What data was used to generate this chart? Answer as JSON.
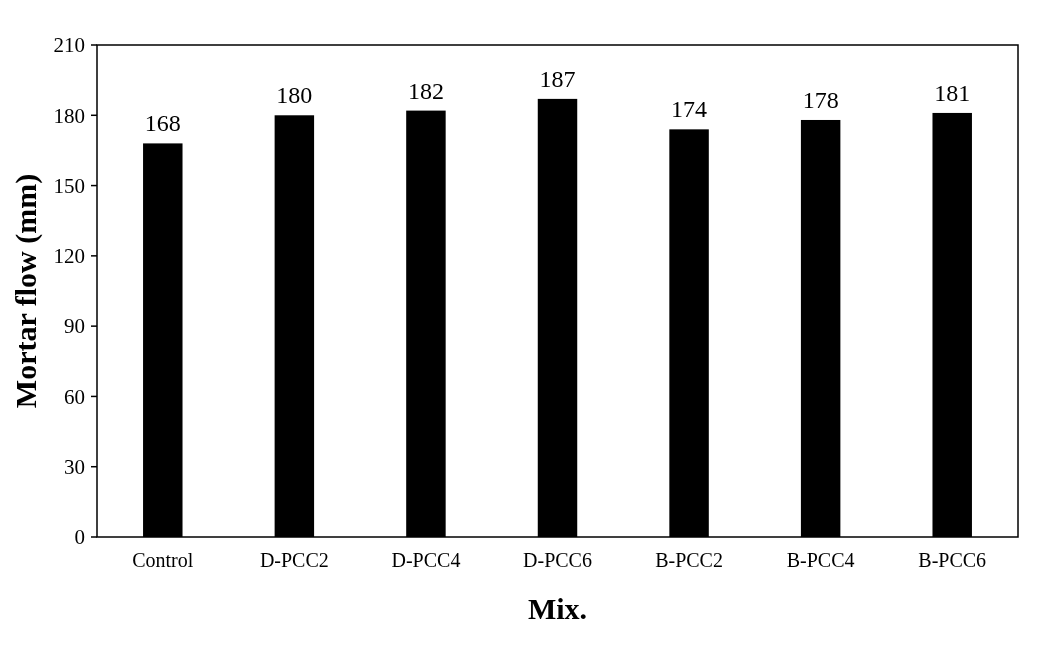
{
  "chart_data": {
    "type": "bar",
    "xlabel": "Mix.",
    "ylabel": "Mortar flow (mm)",
    "categories": [
      "Control",
      "D-PCC2",
      "D-PCC4",
      "D-PCC6",
      "B-PCC2",
      "B-PCC4",
      "B-PCC6"
    ],
    "values": [
      168,
      180,
      182,
      187,
      174,
      178,
      181
    ],
    "color": "#000000",
    "ylim": [
      0,
      210
    ],
    "yticks": [
      0,
      30,
      60,
      90,
      120,
      150,
      180,
      210
    ],
    "grid": false,
    "data_labels": true
  }
}
